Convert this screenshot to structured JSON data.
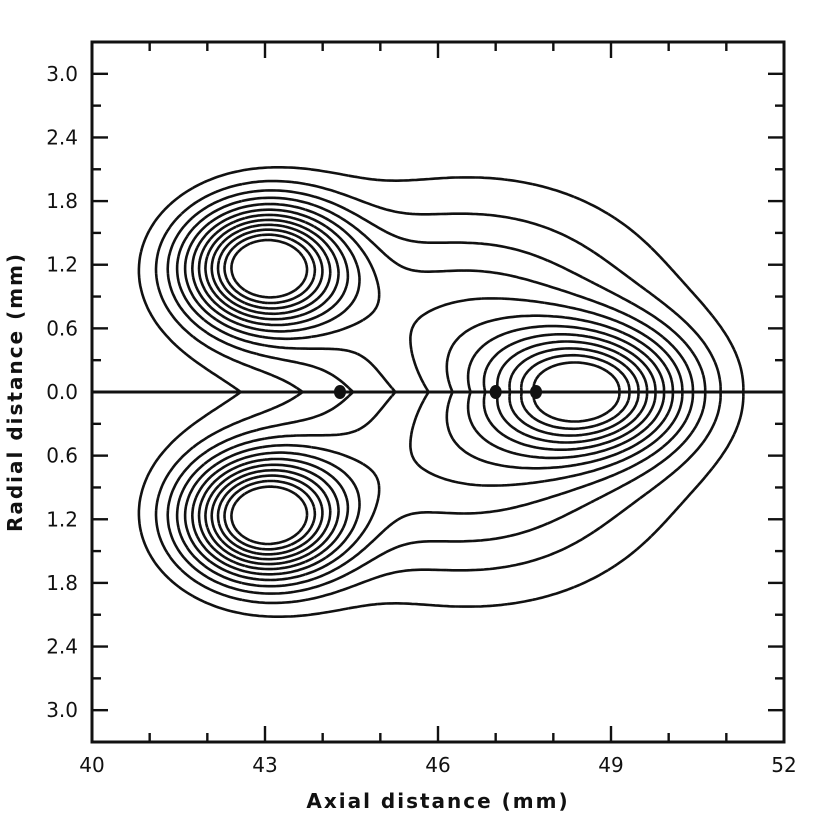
{
  "chart_data": {
    "type": "contour",
    "title": "",
    "xlabel": "Axial distance (mm)",
    "ylabel": "Radial distance (mm)",
    "xlim": [
      40,
      52
    ],
    "ylim": [
      -3.3,
      3.3
    ],
    "grid": false,
    "legend": "none",
    "x_ticks": [
      {
        "value": 40,
        "label": "40"
      },
      {
        "value": 43,
        "label": "43"
      },
      {
        "value": 46,
        "label": "46"
      },
      {
        "value": 49,
        "label": "49"
      },
      {
        "value": 52,
        "label": "52"
      }
    ],
    "x_minor_step": 1,
    "y_ticks": [
      {
        "value": 3.0,
        "label": "3.0"
      },
      {
        "value": 2.4,
        "label": "2.4"
      },
      {
        "value": 1.8,
        "label": "1.8"
      },
      {
        "value": 1.2,
        "label": "1.2"
      },
      {
        "value": 0.6,
        "label": "0.6"
      },
      {
        "value": 0.0,
        "label": "0.0"
      },
      {
        "value": -0.6,
        "label": "0.6"
      },
      {
        "value": -1.2,
        "label": "1.2"
      },
      {
        "value": -1.8,
        "label": "1.8"
      },
      {
        "value": -2.4,
        "label": "2.4"
      },
      {
        "value": -3.0,
        "label": "3.0"
      }
    ],
    "y_minor_step": 0.3,
    "symmetric_about_axis": true,
    "upper_lobe_peak": {
      "x": 43.0,
      "y": 1.18
    },
    "axial_peak": {
      "x": 48.6,
      "y": 0.0
    },
    "axis_markers": [
      {
        "x": 44.3
      },
      {
        "x": 47.0
      },
      {
        "x": 47.7
      }
    ],
    "contour_levels": 12
  }
}
